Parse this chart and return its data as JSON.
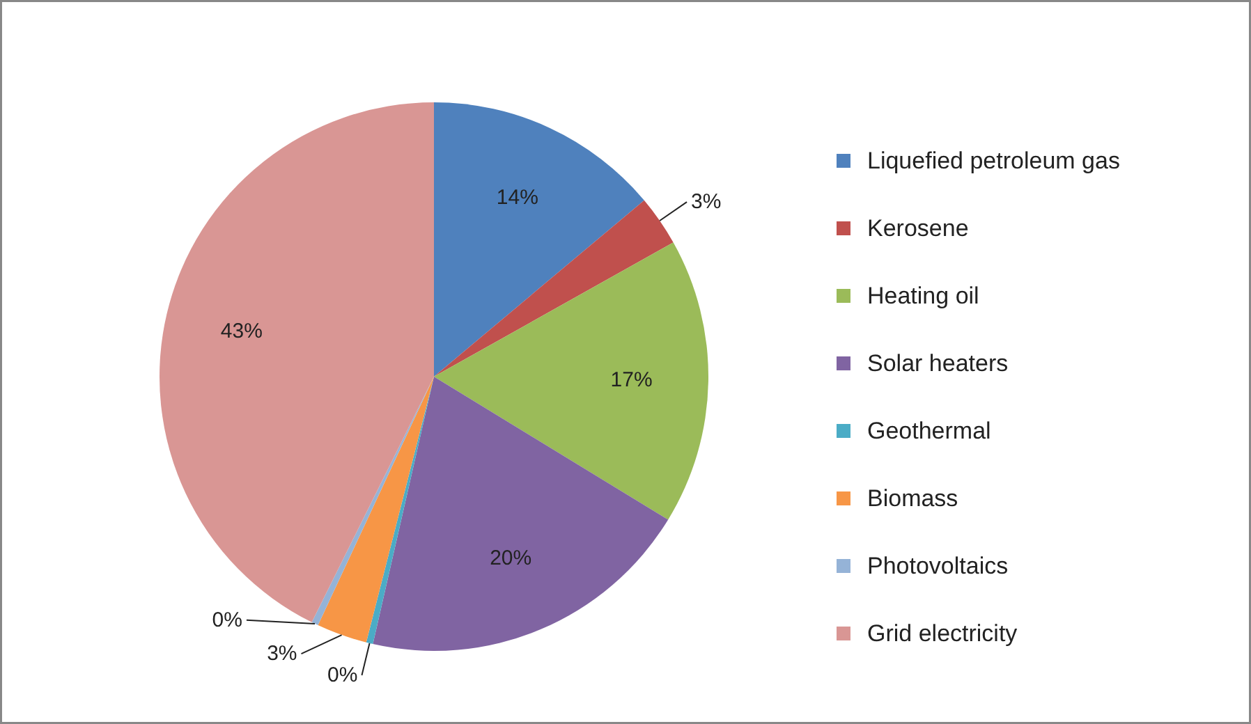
{
  "chart_data": {
    "type": "pie",
    "categories": [
      "Liquefied petroleum gas",
      "Kerosene",
      "Heating oil",
      "Solar heaters",
      "Geothermal",
      "Biomass",
      "Photovoltaics",
      "Grid electricity"
    ],
    "values": [
      14,
      3,
      17,
      20,
      0.4,
      3,
      0.4,
      43
    ],
    "value_labels": [
      "14%",
      "3%",
      "17%",
      "20%",
      "0%",
      "3%",
      "0%",
      "43%"
    ],
    "colors": [
      "#4f81bd",
      "#c0504d",
      "#9bbb59",
      "#8064a2",
      "#4bacc6",
      "#f79646",
      "#95b3d7",
      "#d99694"
    ],
    "legend": "right"
  }
}
